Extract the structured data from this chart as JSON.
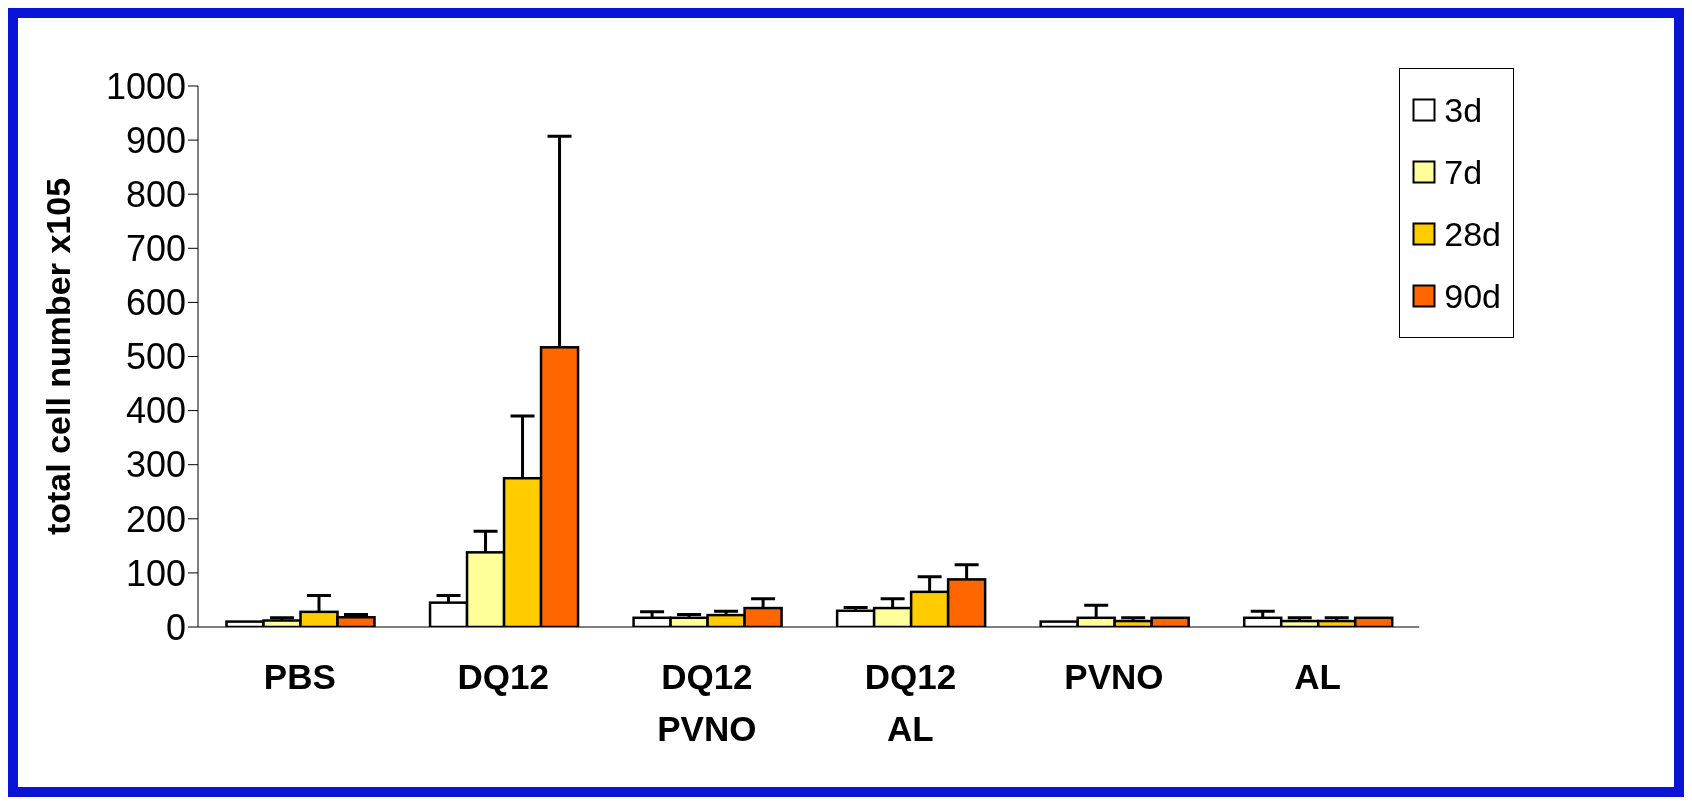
{
  "chart_data": {
    "type": "bar",
    "ylabel": "total cell number x105",
    "categories": [
      "PBS",
      "DQ12",
      "DQ12 PVNO",
      "DQ12 AL",
      "PVNO",
      "AL"
    ],
    "series": [
      {
        "name": "3d",
        "color": "#ffffff",
        "values": [
          10,
          45,
          17,
          30,
          10,
          17
        ],
        "errors": [
          null,
          [
            45,
            58
          ],
          [
            17,
            28
          ],
          [
            30,
            36
          ],
          null,
          [
            17,
            29
          ]
        ]
      },
      {
        "name": "7d",
        "color": "#ffff99",
        "values": [
          12,
          138,
          17,
          35,
          17,
          11
        ],
        "errors": [
          [
            12,
            17
          ],
          [
            138,
            177
          ],
          [
            17,
            23
          ],
          [
            35,
            52
          ],
          [
            17,
            40
          ],
          [
            11,
            17
          ]
        ]
      },
      {
        "name": "28d",
        "color": "#ffcc00",
        "values": [
          28,
          275,
          22,
          65,
          11,
          11
        ],
        "errors": [
          [
            28,
            58
          ],
          [
            275,
            390
          ],
          [
            22,
            29
          ],
          [
            65,
            93
          ],
          [
            11,
            17
          ],
          [
            11,
            17
          ]
        ]
      },
      {
        "name": "90d",
        "color": "#ff6600",
        "values": [
          18,
          517,
          35,
          88,
          17,
          17
        ],
        "errors": [
          [
            18,
            23
          ],
          [
            517,
            907
          ],
          [
            35,
            52
          ],
          [
            88,
            115
          ],
          null,
          null
        ]
      }
    ],
    "ylim": [
      0,
      1000
    ],
    "yticks": [
      0,
      100,
      200,
      300,
      400,
      500,
      600,
      700,
      800,
      900,
      1000
    ],
    "grid": false,
    "legend": "top right"
  }
}
